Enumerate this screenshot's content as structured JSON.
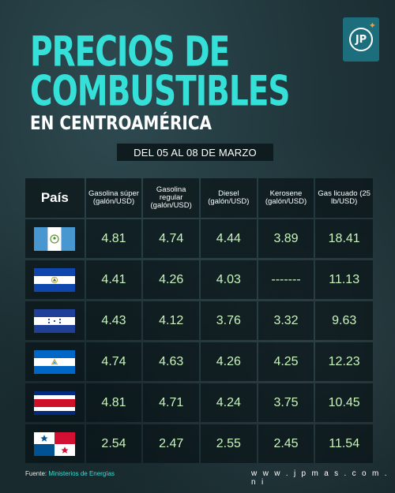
{
  "brand": {
    "logo_text": "JP",
    "website": "w w w . j p m a s . c o m . n i"
  },
  "title": {
    "line1": "PRECIOS DE",
    "line2": "COMBUSTIBLES",
    "line3": "EN CENTROAMÉRICA"
  },
  "date_range": "DEL 05 AL 08 DE MARZO",
  "colors": {
    "title_accent": "#35e0d8",
    "value_text": "#c9f4be"
  },
  "table": {
    "headers": [
      "País",
      "Gasolina súper (galón/USD)",
      "Gasolina regular (galón/USD)",
      "Diesel (galón/USD)",
      "Kerosene (galón/USD)",
      "Gas licuado (25 lb/USD)"
    ],
    "rows": [
      {
        "country_flag": "guatemala-flag",
        "values": [
          "4.81",
          "4.74",
          "4.44",
          "3.89",
          "18.41"
        ]
      },
      {
        "country_flag": "el-salvador-flag",
        "values": [
          "4.41",
          "4.26",
          "4.03",
          "-------",
          "11.13"
        ]
      },
      {
        "country_flag": "honduras-flag",
        "values": [
          "4.43",
          "4.12",
          "3.76",
          "3.32",
          "9.63"
        ]
      },
      {
        "country_flag": "nicaragua-flag",
        "values": [
          "4.74",
          "4.63",
          "4.26",
          "4.25",
          "12.23"
        ]
      },
      {
        "country_flag": "costa-rica-flag",
        "values": [
          "4.81",
          "4.71",
          "4.24",
          "3.75",
          "10.45"
        ]
      },
      {
        "country_flag": "panama-flag",
        "values": [
          "2.54",
          "2.47",
          "2.55",
          "2.45",
          "11.54"
        ]
      }
    ]
  },
  "footer": {
    "source_label": "Fuente:",
    "source_entity": "Ministerios de Energías"
  }
}
